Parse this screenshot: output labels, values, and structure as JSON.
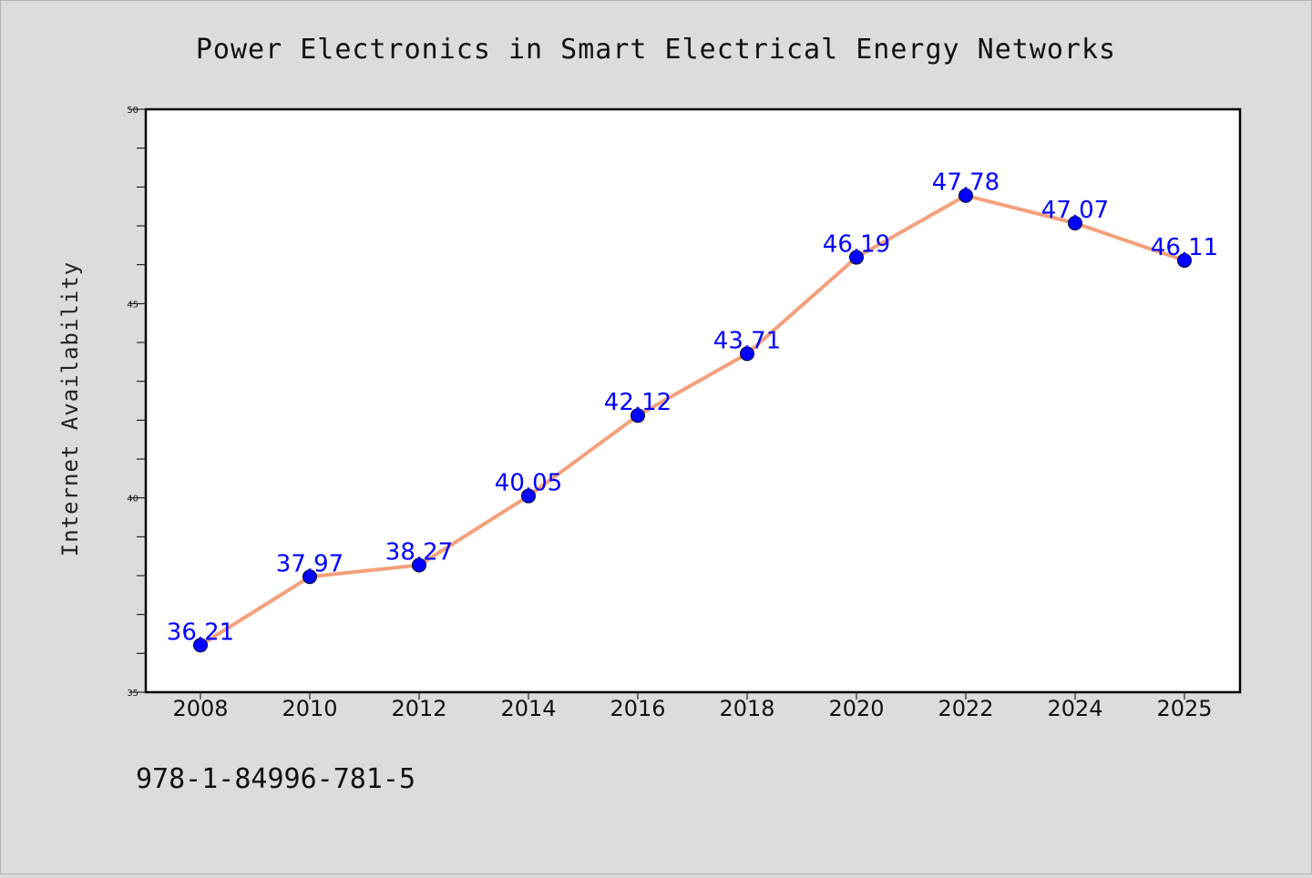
{
  "chart_data": {
    "type": "line",
    "title": "Power Electronics in Smart Electrical Energy Networks",
    "ylabel": "Internet Availability",
    "xlabel": "",
    "categories": [
      "2008",
      "2010",
      "2012",
      "2014",
      "2016",
      "2018",
      "2020",
      "2022",
      "2024",
      "2025"
    ],
    "series": [
      {
        "values": [
          36.21,
          37.97,
          38.27,
          40.05,
          42.12,
          43.71,
          46.19,
          47.78,
          47.07,
          46.11
        ],
        "labels": [
          "36.21",
          "37.97",
          "38.27",
          "40.05",
          "42.12",
          "43.71",
          "46.19",
          "47.78",
          "47.07",
          "46.11"
        ],
        "line_color": "#f4a07c",
        "marker_color": "#0000ff"
      }
    ],
    "ylim": [
      35,
      50
    ],
    "yticks": [
      "35",
      "40",
      "45",
      "50"
    ],
    "grid": false,
    "legend": "none"
  },
  "annotation": "978-1-84996-781-5"
}
